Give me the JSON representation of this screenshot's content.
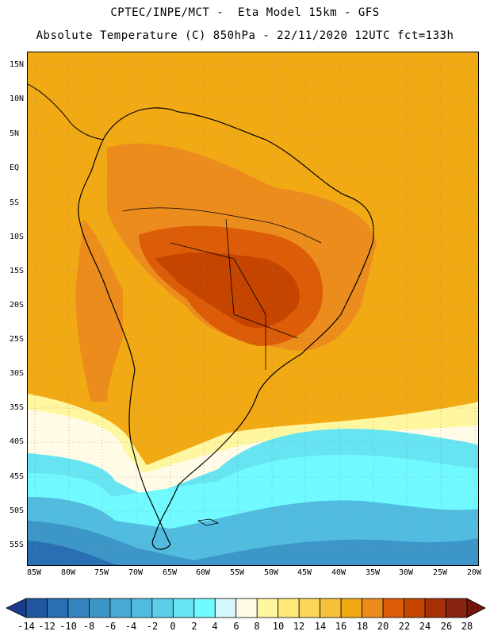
{
  "header": {
    "line1": "CPTEC/INPE/MCT -  Eta Model 15km - GFS",
    "line2": "Absolute Temperature (C) 850hPa - 22/11/2020 12UTC fct=133h"
  },
  "axes": {
    "lat_labels": [
      "15N",
      "10N",
      "5N",
      "EQ",
      "5S",
      "10S",
      "15S",
      "20S",
      "25S",
      "30S",
      "35S",
      "40S",
      "45S",
      "50S",
      "55S"
    ],
    "lon_labels": [
      "85W",
      "80W",
      "75W",
      "70W",
      "65W",
      "60W",
      "55W",
      "50W",
      "45W",
      "40W",
      "35W",
      "30W",
      "25W",
      "20W"
    ]
  },
  "colorbar": {
    "labels": [
      "-14",
      "-12",
      "-10",
      "-8",
      "-6",
      "-4",
      "-2",
      "0",
      "2",
      "4",
      "6",
      "8",
      "10",
      "12",
      "14",
      "16",
      "18",
      "20",
      "22",
      "24",
      "26",
      "28"
    ],
    "colors": [
      "#1a3c8c",
      "#2156a0",
      "#2a6fb4",
      "#3484c0",
      "#3c97c8",
      "#48aad4",
      "#52bce0",
      "#5cd0e8",
      "#66e4f2",
      "#70faff",
      "#d4f6ff",
      "#fffbe6",
      "#fff6a0",
      "#ffe878",
      "#fcd65a",
      "#f6c23c",
      "#f2aa14",
      "#ec8c1c",
      "#dc5c08",
      "#c44400",
      "#a83008",
      "#8a2410",
      "#74140c"
    ]
  }
}
